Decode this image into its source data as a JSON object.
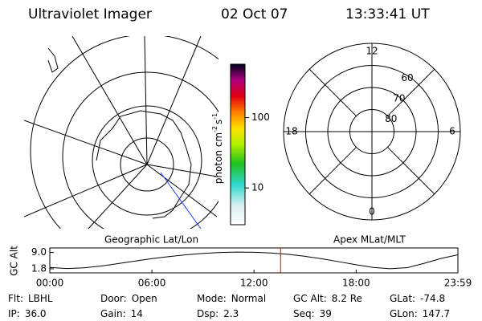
{
  "header": {
    "title": "Ultraviolet Imager",
    "date": "02 Oct 07",
    "time": "13:33:41 UT"
  },
  "map_panel": {
    "label": "Geographic Lat/Lon"
  },
  "polar_panel": {
    "label": "Apex MLat/MLT",
    "rlim": [
      90,
      50
    ],
    "lat_circles": [
      60,
      70,
      80
    ],
    "mlt_labels": [
      12,
      6,
      0,
      18
    ]
  },
  "colorbar": {
    "scale": "log",
    "clim": [
      3,
      575
    ],
    "ticks": [
      10,
      100
    ],
    "unit": "photon cm",
    "exp1": "-2",
    "unit2": "s",
    "exp2": "-1"
  },
  "orbit_plot": {
    "ylabel": "GC Alt",
    "ylim": [
      0,
      11
    ],
    "yticks": [
      {
        "value": 9,
        "label": "9.0"
      },
      {
        "value": 1.8,
        "label": "1.8"
      }
    ],
    "xlim": [
      0,
      23.98
    ],
    "xticks": [
      {
        "value": 0,
        "label": "00:00"
      },
      {
        "value": 6,
        "label": "06:00"
      },
      {
        "value": 12,
        "label": "12:00"
      },
      {
        "value": 18,
        "label": "18:00"
      },
      {
        "value": 23.98,
        "label": "23:59"
      }
    ],
    "x": [
      0,
      1,
      2,
      3,
      4,
      5,
      6,
      7,
      8,
      9,
      10,
      11,
      12,
      13,
      14,
      15,
      16,
      17,
      18,
      19,
      20,
      21,
      22,
      23,
      23.98
    ],
    "values": [
      2.4,
      1.9,
      2.2,
      3.0,
      4.1,
      5.2,
      6.3,
      7.2,
      8.0,
      8.6,
      9.0,
      9.2,
      9.1,
      8.8,
      8.2,
      7.3,
      6.2,
      4.9,
      3.6,
      2.4,
      1.8,
      2.3,
      4.2,
      6.4,
      8.0
    ],
    "marker_x": 13.56,
    "marker_color": "#e00000"
  },
  "info": [
    [
      {
        "label": "Flt:",
        "value": "LBHL"
      },
      {
        "label": "Door:",
        "value": "Open"
      },
      {
        "label": "Mode:",
        "value": "Normal"
      },
      {
        "label": "GC Alt:",
        "value": "8.2 Re"
      },
      {
        "label": "GLat:",
        "value": "-74.8"
      }
    ],
    [
      {
        "label": "IP:",
        "value": "36.0"
      },
      {
        "label": "Gain:",
        "value": "14"
      },
      {
        "label": "Dsp:",
        "value": "2.3"
      },
      {
        "label": "Seq:",
        "value": "39"
      },
      {
        "label": "GLon:",
        "value": "147.7"
      }
    ]
  ]
}
